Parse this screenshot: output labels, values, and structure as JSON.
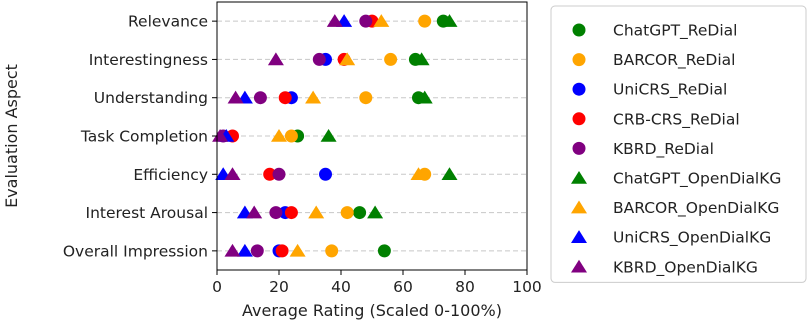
{
  "chart_data": {
    "type": "scatter",
    "title": "",
    "xlabel": "Average Rating (Scaled 0-100%)",
    "ylabel": "Evaluation Aspect",
    "xlim": [
      0,
      100
    ],
    "x_ticks": [
      "0",
      "20",
      "40",
      "60",
      "80",
      "100"
    ],
    "categories": [
      "Relevance",
      "Interestingness",
      "Understanding",
      "Task Completion",
      "Efficiency",
      "Interest Arousal",
      "Overall Impression"
    ],
    "grid": "horizontal dashed",
    "legend_position": "outside-right",
    "series": [
      {
        "name": "ChatGPT_ReDial",
        "marker": "circle",
        "color": "#008000",
        "values": [
          73,
          64,
          65,
          26,
          null,
          46,
          54
        ]
      },
      {
        "name": "BARCOR_ReDial",
        "marker": "circle",
        "color": "#ffa500",
        "values": [
          67,
          56,
          48,
          24,
          67,
          42,
          37
        ]
      },
      {
        "name": "UniCRS_ReDial",
        "marker": "circle",
        "color": "#0000ff",
        "values": [
          null,
          35,
          24,
          null,
          35,
          22,
          20
        ]
      },
      {
        "name": "CRB-CRS_ReDial",
        "marker": "circle",
        "color": "#ff0000",
        "values": [
          50,
          41,
          22,
          5,
          17,
          24,
          21
        ]
      },
      {
        "name": "KBRD_ReDial",
        "marker": "circle",
        "color": "#800080",
        "values": [
          48,
          33,
          14,
          2,
          20,
          19,
          13
        ]
      },
      {
        "name": "ChatGPT_OpenDialKG",
        "marker": "triangle",
        "color": "#008000",
        "values": [
          75,
          66,
          67,
          36,
          75,
          51,
          null
        ]
      },
      {
        "name": "BARCOR_OpenDialKG",
        "marker": "triangle",
        "color": "#ffa500",
        "values": [
          53,
          42,
          31,
          20,
          65,
          32,
          26
        ]
      },
      {
        "name": "UniCRS_OpenDialKG",
        "marker": "triangle",
        "color": "#0000ff",
        "values": [
          41,
          null,
          9,
          3,
          2,
          9,
          9
        ]
      },
      {
        "name": "KBRD_OpenDialKG",
        "marker": "triangle",
        "color": "#800080",
        "values": [
          38,
          19,
          6,
          1,
          5,
          12,
          5
        ]
      }
    ]
  }
}
